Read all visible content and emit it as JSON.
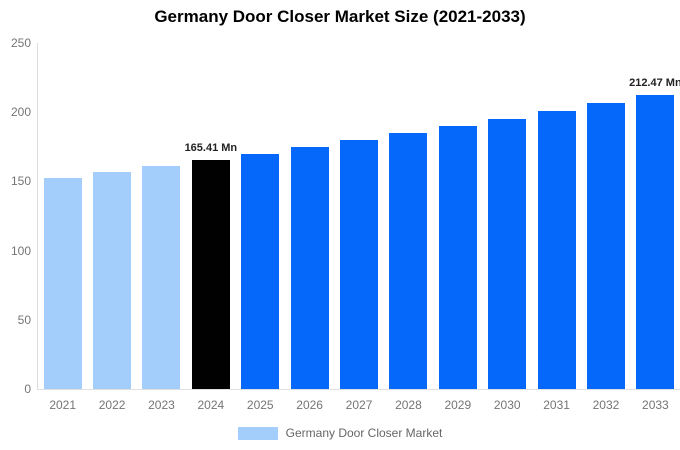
{
  "chart_data": {
    "type": "bar",
    "title": "Germany Door Closer Market Size (2021-2033)",
    "xlabel": "",
    "ylabel": "",
    "categories": [
      "2021",
      "2022",
      "2023",
      "2024",
      "2025",
      "2026",
      "2027",
      "2028",
      "2029",
      "2030",
      "2031",
      "2032",
      "2033"
    ],
    "values": [
      152.2,
      156.5,
      160.9,
      165.41,
      170.1,
      174.9,
      179.8,
      184.9,
      190.1,
      195.4,
      200.9,
      206.6,
      212.47
    ],
    "bar_colors": [
      "#A3CDFA",
      "#A3CDFA",
      "#A3CDFA",
      "#010101",
      "#0568FB",
      "#0568FB",
      "#0568FB",
      "#0568FB",
      "#0568FB",
      "#0568FB",
      "#0568FB",
      "#0568FB",
      "#0568FB"
    ],
    "y_ticks": [
      0,
      50,
      100,
      150,
      200,
      250
    ],
    "ylim": [
      0,
      250
    ],
    "grid": false,
    "legend_position": "bottom",
    "annotations": [
      {
        "category": "2024",
        "text": "165.41 Mn"
      },
      {
        "category": "2033",
        "text": "212.47 Mn"
      }
    ]
  },
  "legend": {
    "label": "Germany Door Closer Market",
    "swatch_color": "#A3CDFA"
  },
  "colors": {
    "historical_bar": "#A3CDFA",
    "base_year_bar": "#010101",
    "forecast_bar": "#0568FB",
    "axis_text": "#757575",
    "axis_line": "#DDDDDD",
    "value_label_text": "#222222",
    "title_text": "#000000"
  }
}
